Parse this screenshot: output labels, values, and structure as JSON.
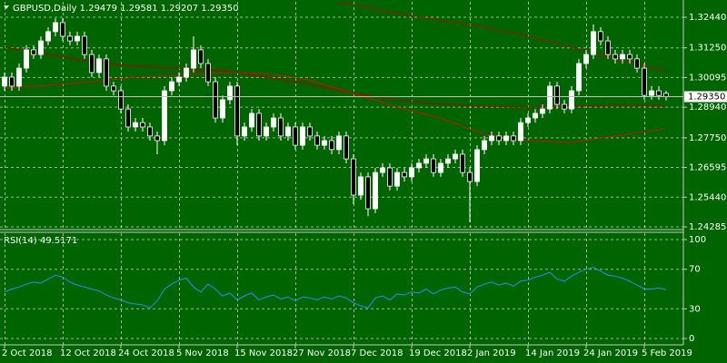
{
  "chart_data": [
    {
      "type": "candlestick",
      "title": "GBPUSD,Daily 1.29479 1.29581 1.29207 1.29350",
      "categories": [
        "2 Oct 2018",
        null,
        null,
        null,
        null,
        null,
        null,
        null,
        "12 Oct 2018",
        null,
        null,
        null,
        null,
        null,
        null,
        null,
        "24 Oct 2018",
        null,
        null,
        null,
        null,
        null,
        null,
        null,
        "5 Nov 2018",
        null,
        null,
        null,
        null,
        null,
        null,
        null,
        "15 Nov 2018",
        null,
        null,
        null,
        null,
        null,
        null,
        null,
        "27 Nov 2018",
        null,
        null,
        null,
        null,
        null,
        null,
        null,
        "7 Dec 2018",
        null,
        null,
        null,
        null,
        null,
        null,
        null,
        "19 Dec 2018",
        null,
        null,
        null,
        null,
        null,
        null,
        null,
        "2 Jan 2019",
        null,
        null,
        null,
        null,
        null,
        null,
        null,
        "14 Jan 2019",
        null,
        null,
        null,
        null,
        null,
        null,
        null,
        "24 Jan 2019",
        null,
        null,
        null,
        null,
        null,
        null,
        null,
        "5 Feb 2019",
        null,
        null,
        null
      ],
      "open": [
        1.2976,
        1.3011,
        1.2976,
        1.3046,
        1.3117,
        1.3099,
        1.3152,
        1.3188,
        1.3223,
        1.317,
        1.3152,
        1.317,
        1.3099,
        1.3029,
        1.3082,
        1.2976,
        1.2958,
        1.2887,
        1.2817,
        1.2834,
        1.2817,
        1.2782,
        1.2764,
        1.2958,
        1.2993,
        1.3011,
        1.3046,
        1.3117,
        1.3064,
        1.2993,
        1.2852,
        1.2923,
        1.2976,
        1.2782,
        1.2817,
        1.287,
        1.2782,
        1.2817,
        1.2852,
        1.2782,
        1.2817,
        1.2746,
        1.2817,
        1.2782,
        1.2746,
        1.2764,
        1.2729,
        1.2782,
        1.2693,
        1.2552,
        1.2623,
        1.2499,
        1.264,
        1.2658,
        1.2587,
        1.264,
        1.2623,
        1.2658,
        1.2676,
        1.2693,
        1.264,
        1.2676,
        1.2693,
        1.2711,
        1.264,
        1.2605,
        1.2729,
        1.2764,
        1.2782,
        1.2764,
        1.2782,
        1.2764,
        1.2834,
        1.2852,
        1.287,
        1.2887,
        1.2976,
        1.2905,
        1.2887,
        1.2958,
        1.3064,
        1.3099,
        1.3188,
        1.3152,
        1.3099,
        1.3082,
        1.3099,
        1.3082,
        1.3046,
        1.294,
        1.2958,
        1.29479
      ],
      "high": [
        1.3029,
        1.3029,
        1.3064,
        1.3135,
        1.3135,
        1.317,
        1.3205,
        1.324,
        1.324,
        1.3188,
        1.3188,
        1.3188,
        1.3117,
        1.3099,
        1.3099,
        1.2993,
        1.2976,
        1.2905,
        1.2852,
        1.2852,
        1.2834,
        1.2799,
        1.2976,
        1.3011,
        1.3029,
        1.3064,
        1.317,
        1.3135,
        1.3082,
        1.3011,
        1.294,
        1.2993,
        1.2993,
        1.2834,
        1.2887,
        1.2887,
        1.2834,
        1.287,
        1.287,
        1.2834,
        1.2834,
        1.2834,
        1.2834,
        1.2799,
        1.2782,
        1.2782,
        1.2799,
        1.2799,
        1.2711,
        1.264,
        1.264,
        1.2658,
        1.2676,
        1.2676,
        1.2658,
        1.2658,
        1.2676,
        1.2693,
        1.2711,
        1.2711,
        1.2693,
        1.2711,
        1.2729,
        1.2729,
        1.2658,
        1.2746,
        1.2782,
        1.2799,
        1.2799,
        1.2799,
        1.2799,
        1.2852,
        1.287,
        1.2887,
        1.2905,
        1.2993,
        1.2993,
        1.2923,
        1.2976,
        1.3082,
        1.3117,
        1.3216,
        1.3205,
        1.317,
        1.3117,
        1.3117,
        1.3117,
        1.3099,
        1.3064,
        1.2976,
        1.2976,
        1.29581
      ],
      "low": [
        1.2958,
        1.2958,
        1.2958,
        1.3029,
        1.3082,
        1.3082,
        1.3135,
        1.317,
        1.3152,
        1.3135,
        1.3135,
        1.3082,
        1.3011,
        1.3011,
        1.2958,
        1.294,
        1.287,
        1.2799,
        1.2799,
        1.2799,
        1.2764,
        1.2711,
        1.2746,
        1.294,
        1.2976,
        1.2993,
        1.3029,
        1.3046,
        1.2976,
        1.2834,
        1.2834,
        1.2905,
        1.2746,
        1.2764,
        1.2799,
        1.2764,
        1.2764,
        1.2799,
        1.2764,
        1.2764,
        1.2729,
        1.2729,
        1.2764,
        1.2729,
        1.2729,
        1.2711,
        1.2711,
        1.2676,
        1.2517,
        1.2534,
        1.247,
        1.2482,
        1.2623,
        1.257,
        1.257,
        1.2605,
        1.2605,
        1.264,
        1.2658,
        1.2623,
        1.2623,
        1.2658,
        1.2676,
        1.2623,
        1.2446,
        1.2587,
        1.2711,
        1.2746,
        1.2746,
        1.2746,
        1.2746,
        1.2746,
        1.2817,
        1.2834,
        1.2852,
        1.287,
        1.2887,
        1.287,
        1.287,
        1.294,
        1.3046,
        1.3082,
        1.3135,
        1.3082,
        1.3064,
        1.3064,
        1.3064,
        1.3029,
        1.2923,
        1.2923,
        1.2923,
        1.29207
      ],
      "close": [
        1.3011,
        1.2976,
        1.3046,
        1.3117,
        1.3099,
        1.3152,
        1.3188,
        1.3223,
        1.317,
        1.3152,
        1.317,
        1.3099,
        1.3029,
        1.3082,
        1.2976,
        1.2958,
        1.2887,
        1.2817,
        1.2834,
        1.2817,
        1.2782,
        1.2764,
        1.2958,
        1.2993,
        1.3011,
        1.3046,
        1.3117,
        1.3064,
        1.2993,
        1.2852,
        1.2923,
        1.2976,
        1.2782,
        1.2817,
        1.287,
        1.2782,
        1.2817,
        1.2852,
        1.2782,
        1.2817,
        1.2746,
        1.2817,
        1.2782,
        1.2746,
        1.2764,
        1.2729,
        1.2782,
        1.2693,
        1.2552,
        1.2623,
        1.2499,
        1.264,
        1.2658,
        1.2587,
        1.264,
        1.2623,
        1.2658,
        1.2676,
        1.2693,
        1.264,
        1.2676,
        1.2693,
        1.2711,
        1.264,
        1.2605,
        1.2729,
        1.2764,
        1.2782,
        1.2764,
        1.2782,
        1.2764,
        1.2834,
        1.2852,
        1.287,
        1.2887,
        1.2976,
        1.2905,
        1.2887,
        1.2958,
        1.3064,
        1.3099,
        1.3188,
        1.3152,
        1.3099,
        1.3082,
        1.3099,
        1.3082,
        1.3046,
        1.294,
        1.2958,
        1.294,
        1.2935
      ],
      "series": [
        {
          "color": "#b00000",
          "values": [
            1.3128,
            1.3123,
            1.3118,
            1.3114,
            1.3109,
            1.3104,
            1.3099,
            1.3094,
            1.309,
            1.3085,
            1.308,
            1.3076,
            1.3071,
            1.3068,
            1.3065,
            1.3062,
            1.3059,
            1.3056,
            1.3053,
            1.3052,
            1.3051,
            1.305,
            1.3048,
            1.3047,
            1.3046,
            1.3044,
            1.3043,
            1.3041,
            1.3039,
            1.3038,
            1.3036,
            1.3032,
            1.3028,
            1.3024,
            1.3019,
            1.3015,
            1.3011,
            1.3006,
            1.3002,
            1.2997,
            1.2992,
            1.2988,
            1.2983,
            1.2977,
            1.2971,
            1.2965,
            1.2959,
            1.2953,
            1.2947,
            1.2943,
            1.2939,
            1.2935,
            1.2931,
            1.2927,
            1.2923,
            1.292,
            1.2917,
            1.2914,
            1.2911,
            1.2908,
            1.2905,
            1.2904,
            1.2903,
            1.2902,
            1.29,
            1.2899,
            1.2898,
            1.2897,
            1.2897,
            1.2896,
            1.2895,
            1.2895,
            1.2894,
            1.2895,
            1.2895,
            1.2896,
            1.2897,
            1.2897,
            1.2898,
            1.2899,
            1.2899,
            1.29,
            1.2901,
            1.2901,
            1.2902,
            1.2901,
            1.2901,
            1.29,
            1.29,
            1.2899,
            1.2899,
            1.2898
          ]
        },
        {
          "color": "#c81010",
          "values": [
            1.2969,
            1.2971,
            1.2972,
            1.2974,
            1.2976,
            1.2977,
            1.2979,
            1.2981,
            1.2984,
            1.2986,
            1.2988,
            1.2991,
            1.2993,
            1.2996,
            1.2999,
            1.3002,
            1.3005,
            1.3008,
            1.3011,
            1.3012,
            1.3013,
            1.3014,
            1.3016,
            1.3017,
            1.3018,
            1.302,
            1.3022,
            1.3024,
            1.3025,
            1.3027,
            1.3029,
            1.3028,
            1.3028,
            1.3027,
            1.3026,
            1.3026,
            1.3025,
            1.3021,
            1.3017,
            1.3013,
            1.3008,
            1.3004,
            1.3,
            1.2991,
            1.2982,
            1.2974,
            1.2965,
            1.2956,
            1.2947,
            1.2938,
            1.2929,
            1.2921,
            1.2912,
            1.2903,
            1.2894,
            1.2887,
            1.288,
            1.2873,
            1.2866,
            1.2859,
            1.2852,
            1.2841,
            1.2831,
            1.282,
            1.2809,
            1.2799,
            1.2788,
            1.2784,
            1.278,
            1.2776,
            1.2772,
            1.2768,
            1.2764,
            1.2763,
            1.2762,
            1.2761,
            1.2759,
            1.2758,
            1.2757,
            1.2761,
            1.2765,
            1.2769,
            1.2774,
            1.2778,
            1.2782,
            1.2786,
            1.279,
            1.2794,
            1.2798,
            1.2802,
            1.2806,
            1.281
          ]
        },
        {
          "color": "#a01010",
          "values": [
            null,
            null,
            null,
            null,
            null,
            null,
            null,
            null,
            null,
            null,
            null,
            null,
            null,
            null,
            null,
            null,
            null,
            null,
            null,
            null,
            null,
            null,
            null,
            null,
            null,
            null,
            null,
            null,
            null,
            null,
            null,
            null,
            null,
            null,
            null,
            null,
            null,
            null,
            null,
            null,
            null,
            null,
            null,
            null,
            null,
            1.3311,
            1.3305,
            1.3299,
            1.3293,
            1.3287,
            1.3281,
            1.3276,
            1.327,
            1.3264,
            1.3258,
            1.3254,
            1.325,
            1.3246,
            1.3241,
            1.3237,
            1.3233,
            1.3228,
            1.3224,
            1.3219,
            1.3214,
            1.321,
            1.3205,
            1.3199,
            1.3193,
            1.3188,
            1.3182,
            1.3176,
            1.317,
            1.3163,
            1.3156,
            1.3149,
            1.3142,
            1.3135,
            1.3128,
            1.312,
            1.3112,
            1.3105,
            1.3097,
            1.309,
            1.3082,
            1.3075,
            1.3069,
            1.3062,
            1.3056,
            1.3049,
            1.3043,
            1.3036
          ]
        }
      ],
      "up_color": "#ffffff",
      "down_color": "#000000",
      "wick_color": "#ffffff",
      "last_price": {
        "value": 1.2935,
        "label": "1.29350"
      },
      "ylim": [
        1.24214,
        1.3304
      ],
      "yticks": [
        {
          "value": 1.3244,
          "label": "1.32440"
        },
        {
          "value": 1.3125,
          "label": "1.31250"
        },
        {
          "value": 1.30095,
          "label": "1.30095"
        },
        {
          "value": 1.2894,
          "label": "1.28940"
        },
        {
          "value": 1.2775,
          "label": "1.27750"
        },
        {
          "value": 1.26595,
          "label": "1.26595"
        },
        {
          "value": 1.2544,
          "label": "1.25440"
        },
        {
          "value": 1.24285,
          "label": "1.24285"
        }
      ],
      "grid": true
    },
    {
      "type": "line",
      "title": "RSI(14) 49.5171",
      "color": "#1e90ff",
      "values": [
        47,
        50,
        52,
        55,
        57,
        56,
        60,
        64,
        62,
        57,
        54,
        52,
        50,
        48,
        44,
        41,
        39,
        36,
        35,
        34,
        31,
        38,
        50,
        55,
        59,
        61,
        52,
        47,
        55,
        50,
        43,
        46,
        39,
        43,
        46,
        39,
        42,
        44,
        40,
        42,
        38,
        42,
        41,
        39,
        42,
        40,
        43,
        41,
        36,
        33,
        31,
        41,
        43,
        39,
        45,
        44,
        47,
        46,
        50,
        45,
        49,
        51,
        52,
        47,
        45,
        52,
        55,
        57,
        54,
        56,
        53,
        58,
        59,
        62,
        64,
        67,
        60,
        58,
        63,
        67,
        70,
        72,
        68,
        64,
        63,
        61,
        58,
        54,
        50,
        50,
        51,
        49.5171
      ],
      "ylim": [
        -6.4,
        106.4
      ],
      "yticks": [
        100,
        70,
        30,
        0
      ],
      "grid": true
    }
  ]
}
